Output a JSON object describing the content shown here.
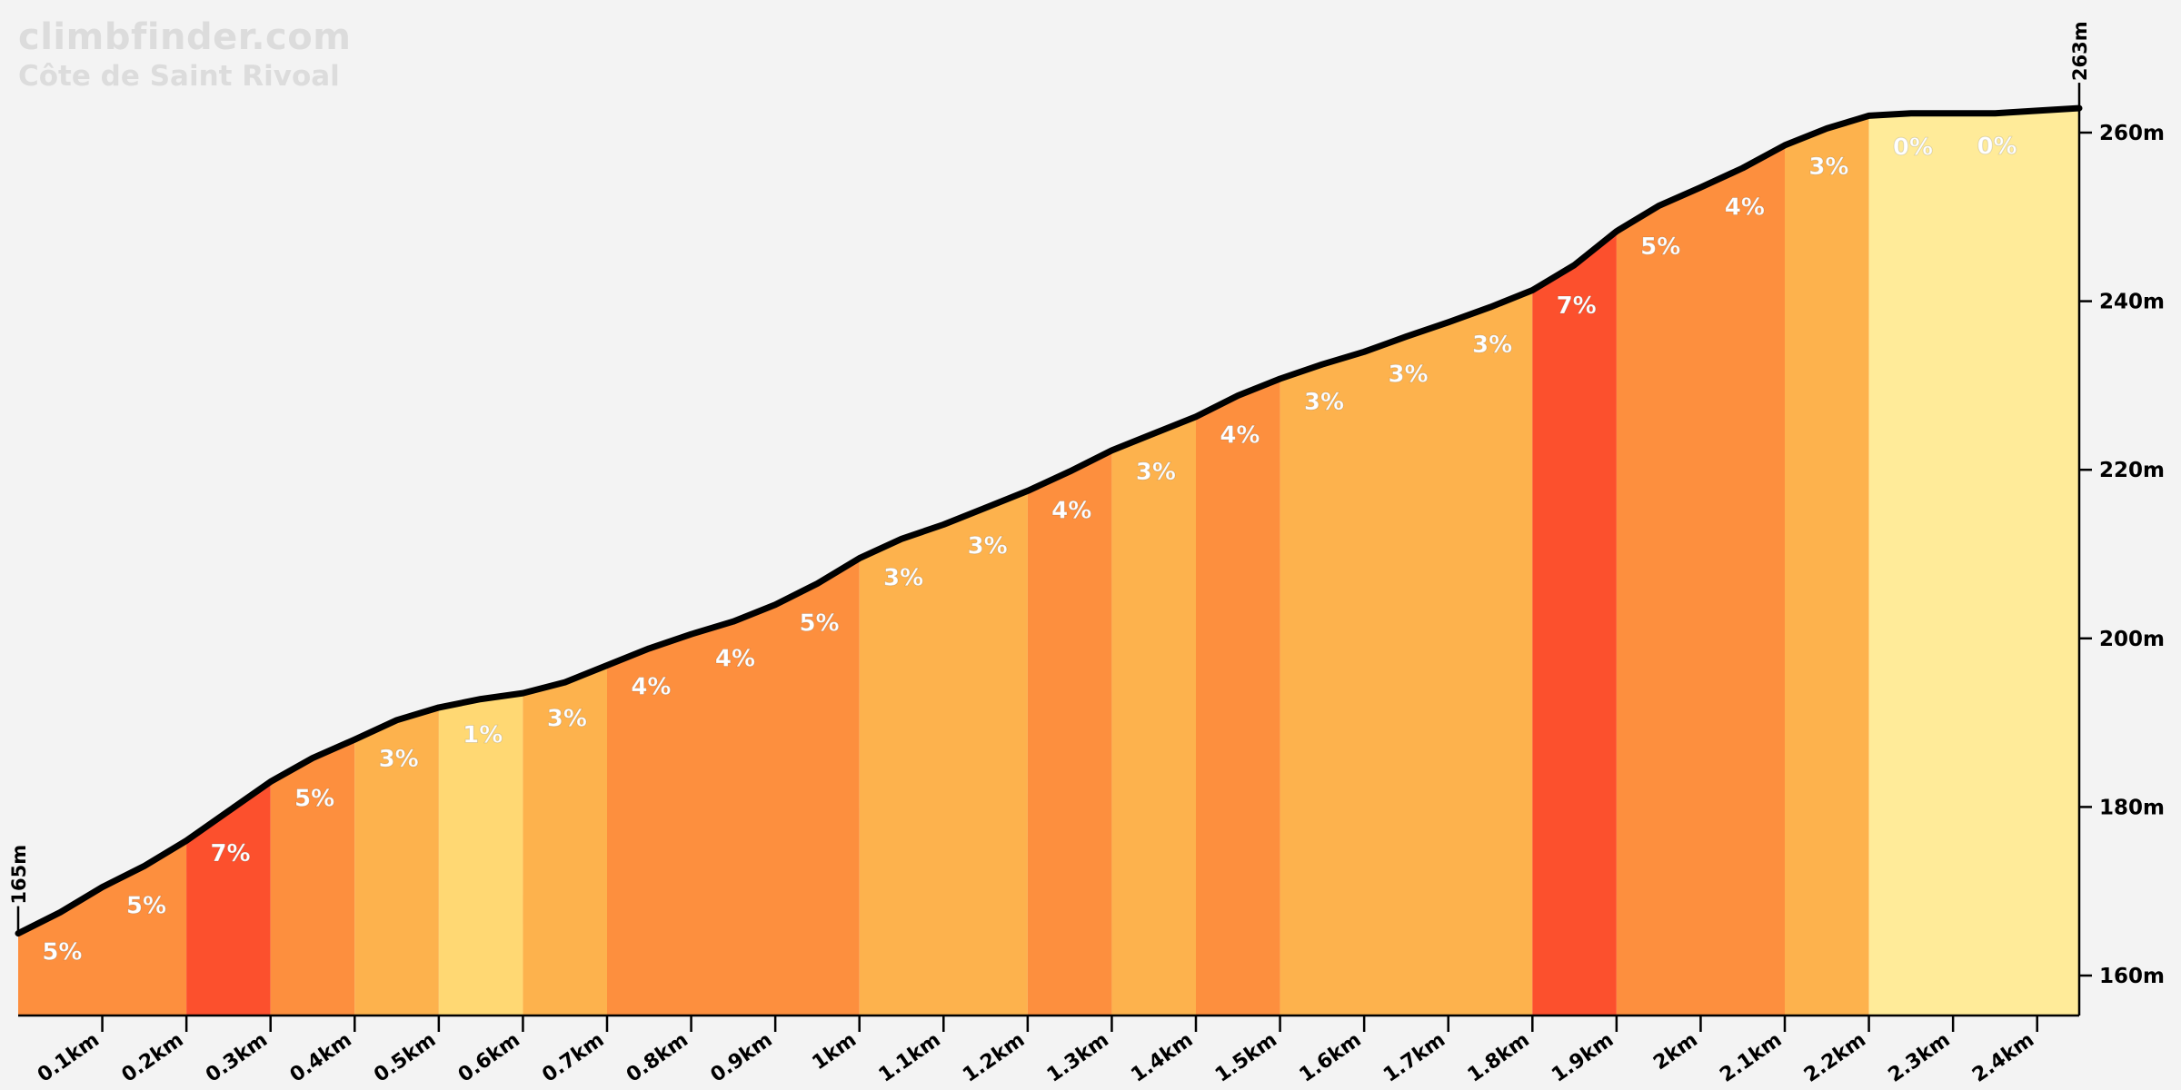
{
  "brand": "climbfinder.com",
  "climb_name": "Côte de Saint Rivoal",
  "colors": {
    "background": "#f3f3f3",
    "gradient_0": "#ffeb99",
    "gradient_1": "#ffd873",
    "gradient_3": "#fdb24d",
    "gradient_4": "#fd8f3e",
    "gradient_5": "#fd8f3e",
    "gradient_7": "#fc502d",
    "profile_line": "#000000",
    "grade_label": "#ffffff"
  },
  "chart_data": {
    "type": "area",
    "title": "Côte de Saint Rivoal",
    "xlabel": "",
    "ylabel": "",
    "x_unit": "km",
    "y_unit": "m",
    "xlim": [
      0,
      2.45
    ],
    "ylim": [
      155,
      270
    ],
    "x_ticks": [
      "0.1km",
      "0.2km",
      "0.3km",
      "0.4km",
      "0.5km",
      "0.6km",
      "0.7km",
      "0.8km",
      "0.9km",
      "1km",
      "1.1km",
      "1.2km",
      "1.3km",
      "1.4km",
      "1.5km",
      "1.6km",
      "1.7km",
      "1.8km",
      "1.9km",
      "2km",
      "2.1km",
      "2.2km",
      "2.3km",
      "2.4km"
    ],
    "x_tick_values": [
      0.1,
      0.2,
      0.3,
      0.4,
      0.5,
      0.6,
      0.7,
      0.8,
      0.9,
      1.0,
      1.1,
      1.2,
      1.3,
      1.4,
      1.5,
      1.6,
      1.7,
      1.8,
      1.9,
      2.0,
      2.1,
      2.2,
      2.3,
      2.4
    ],
    "y_ticks": [
      "160m",
      "180m",
      "200m",
      "220m",
      "240m",
      "260m"
    ],
    "y_tick_values": [
      160,
      180,
      200,
      220,
      240,
      260
    ],
    "start_label": "165m",
    "end_label": "263m",
    "profile": [
      [
        0.0,
        165.0
      ],
      [
        0.05,
        167.5
      ],
      [
        0.1,
        170.5
      ],
      [
        0.15,
        173.0
      ],
      [
        0.2,
        176.0
      ],
      [
        0.25,
        179.5
      ],
      [
        0.3,
        183.0
      ],
      [
        0.35,
        185.8
      ],
      [
        0.4,
        188.0
      ],
      [
        0.45,
        190.3
      ],
      [
        0.5,
        191.8
      ],
      [
        0.55,
        192.8
      ],
      [
        0.6,
        193.5
      ],
      [
        0.65,
        194.8
      ],
      [
        0.7,
        196.8
      ],
      [
        0.75,
        198.8
      ],
      [
        0.8,
        200.5
      ],
      [
        0.85,
        202.0
      ],
      [
        0.9,
        204.0
      ],
      [
        0.95,
        206.5
      ],
      [
        1.0,
        209.5
      ],
      [
        1.05,
        211.8
      ],
      [
        1.1,
        213.5
      ],
      [
        1.15,
        215.5
      ],
      [
        1.2,
        217.5
      ],
      [
        1.25,
        219.8
      ],
      [
        1.3,
        222.3
      ],
      [
        1.35,
        224.3
      ],
      [
        1.4,
        226.3
      ],
      [
        1.45,
        228.8
      ],
      [
        1.5,
        230.8
      ],
      [
        1.55,
        232.5
      ],
      [
        1.6,
        234.0
      ],
      [
        1.65,
        235.8
      ],
      [
        1.7,
        237.5
      ],
      [
        1.75,
        239.3
      ],
      [
        1.8,
        241.3
      ],
      [
        1.85,
        244.3
      ],
      [
        1.9,
        248.3
      ],
      [
        1.95,
        251.3
      ],
      [
        2.0,
        253.5
      ],
      [
        2.05,
        255.8
      ],
      [
        2.1,
        258.5
      ],
      [
        2.15,
        260.5
      ],
      [
        2.2,
        262.0
      ],
      [
        2.25,
        262.3
      ],
      [
        2.3,
        262.3
      ],
      [
        2.35,
        262.3
      ],
      [
        2.4,
        262.6
      ],
      [
        2.45,
        262.9
      ]
    ],
    "segments": [
      {
        "start": 0.0,
        "end": 0.2,
        "grades": [
          5,
          5
        ],
        "label_x": [
          0.035,
          0.135
        ],
        "color": "#fd8f3e"
      },
      {
        "start": 0.2,
        "end": 0.3,
        "grade": 7,
        "label": "7%",
        "color": "#fc502d"
      },
      {
        "start": 0.3,
        "end": 0.4,
        "grade": 5,
        "label": "5%",
        "color": "#fd8f3e"
      },
      {
        "start": 0.4,
        "end": 0.5,
        "grade": 3,
        "label": "3%",
        "color": "#fdb24d"
      },
      {
        "start": 0.5,
        "end": 0.6,
        "grade": 1,
        "label": "1%",
        "color": "#ffd873"
      },
      {
        "start": 0.6,
        "end": 0.7,
        "grade": 3,
        "label": "3%",
        "color": "#fdb24d"
      },
      {
        "start": 0.7,
        "end": 1.0,
        "grade_labels": [
          "4%",
          "4%",
          "5%"
        ],
        "color": "#fd8f3e"
      },
      {
        "start": 1.0,
        "end": 1.2,
        "grade_labels": [
          "3%",
          "3%"
        ],
        "color": "#fdb24d"
      },
      {
        "start": 1.2,
        "end": 1.3,
        "grade": 4,
        "label": "4%",
        "color": "#fd8f3e"
      },
      {
        "start": 1.3,
        "end": 1.4,
        "grade": 3,
        "label": "3%",
        "color": "#fdb24d"
      },
      {
        "start": 1.4,
        "end": 1.5,
        "grade": 4,
        "label": "4%",
        "color": "#fd8f3e"
      },
      {
        "start": 1.5,
        "end": 1.8,
        "grade_labels": [
          "3%",
          "3%",
          "3%"
        ],
        "color": "#fdb24d"
      },
      {
        "start": 1.8,
        "end": 1.9,
        "grade": 7,
        "label": "7%",
        "color": "#fc502d"
      },
      {
        "start": 1.9,
        "end": 2.1,
        "grade_labels": [
          "5%",
          "4%"
        ],
        "color": "#fd8f3e"
      },
      {
        "start": 2.1,
        "end": 2.2,
        "grade": 3,
        "label": "3%",
        "color": "#fdb24d"
      },
      {
        "start": 2.2,
        "end": 2.45,
        "grade_labels": [
          "0%",
          "0%"
        ],
        "color": "#ffeb99"
      }
    ],
    "grade_labels": [
      {
        "x": 0.035,
        "text": "5%"
      },
      {
        "x": 0.135,
        "text": "5%"
      },
      {
        "x": 0.235,
        "text": "7%"
      },
      {
        "x": 0.335,
        "text": "5%"
      },
      {
        "x": 0.435,
        "text": "3%"
      },
      {
        "x": 0.535,
        "text": "1%"
      },
      {
        "x": 0.635,
        "text": "3%"
      },
      {
        "x": 0.735,
        "text": "4%"
      },
      {
        "x": 0.835,
        "text": "4%"
      },
      {
        "x": 0.935,
        "text": "5%"
      },
      {
        "x": 1.035,
        "text": "3%"
      },
      {
        "x": 1.135,
        "text": "3%"
      },
      {
        "x": 1.235,
        "text": "4%"
      },
      {
        "x": 1.335,
        "text": "3%"
      },
      {
        "x": 1.435,
        "text": "4%"
      },
      {
        "x": 1.535,
        "text": "3%"
      },
      {
        "x": 1.635,
        "text": "3%"
      },
      {
        "x": 1.735,
        "text": "3%"
      },
      {
        "x": 1.835,
        "text": "7%"
      },
      {
        "x": 1.935,
        "text": "5%"
      },
      {
        "x": 2.035,
        "text": "4%"
      },
      {
        "x": 2.135,
        "text": "3%"
      },
      {
        "x": 2.235,
        "text": "0%"
      },
      {
        "x": 2.335,
        "text": "0%"
      }
    ],
    "grid": false,
    "legend": "none"
  }
}
